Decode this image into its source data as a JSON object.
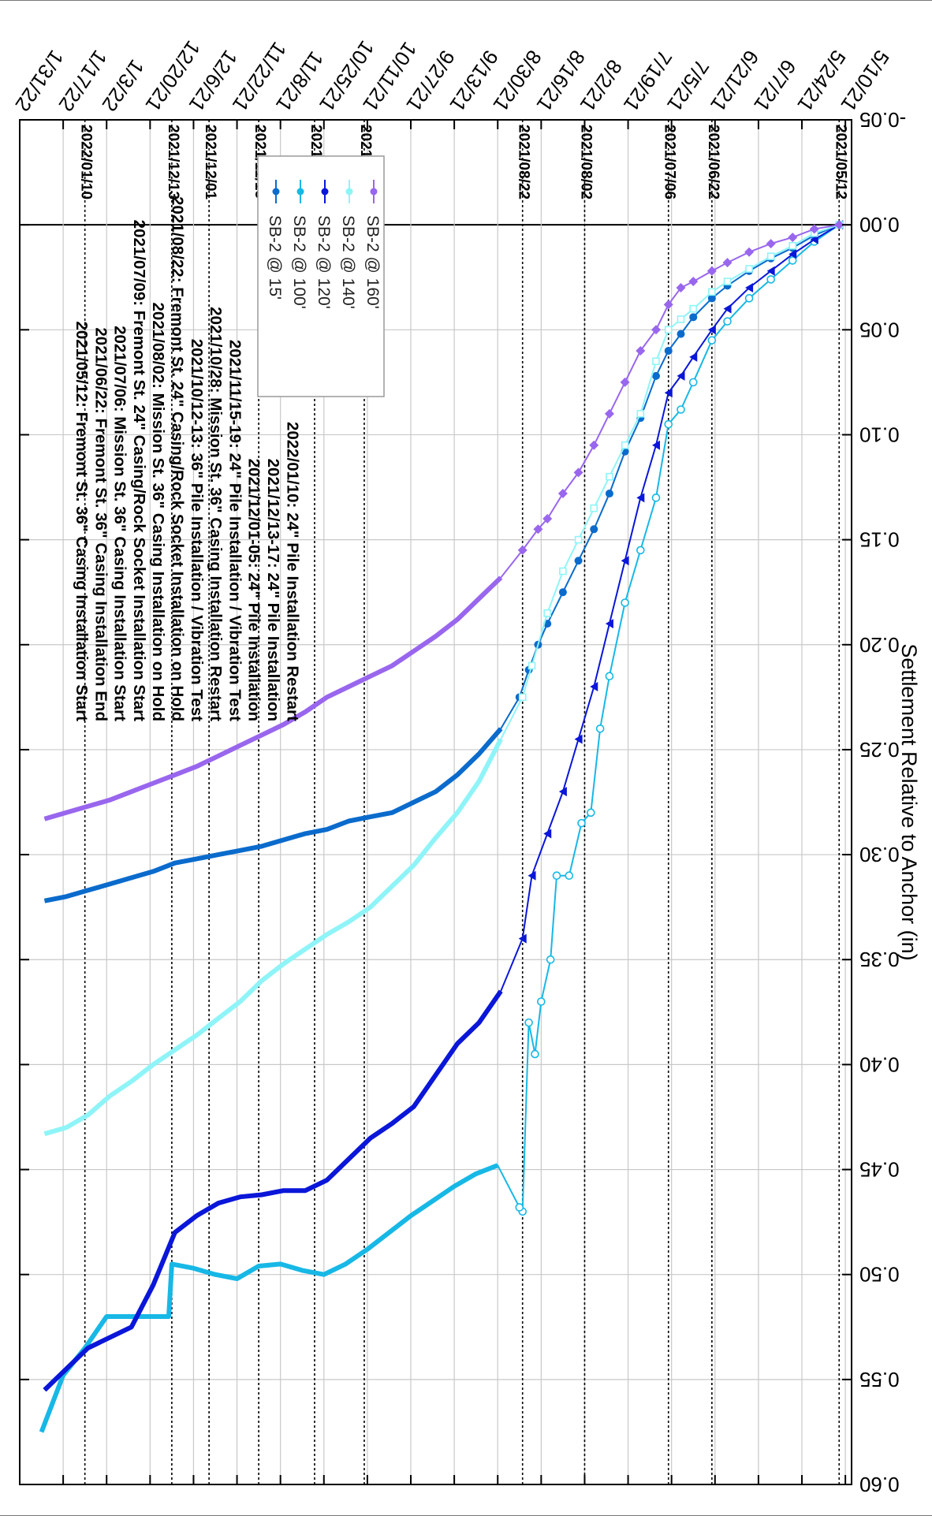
{
  "chart_data": {
    "type": "line",
    "ylabel": "Settlement Relative to Anchor (in)",
    "ylim": [
      -0.05,
      0.6
    ],
    "yticks": [
      "-0.05",
      "0.00",
      "0.05",
      "0.10",
      "0.15",
      "0.20",
      "0.25",
      "0.30",
      "0.35",
      "0.40",
      "0.45",
      "0.50",
      "0.55",
      "0.60"
    ],
    "xlim": [
      "2021-05-08",
      "2022-01-31"
    ],
    "xticks": [
      {
        "date": "2021-05-10",
        "label": "5/10/21"
      },
      {
        "date": "2021-05-24",
        "label": "5/24/21"
      },
      {
        "date": "2021-06-07",
        "label": "6/7/21"
      },
      {
        "date": "2021-06-21",
        "label": "6/21/21"
      },
      {
        "date": "2021-07-05",
        "label": "7/5/21"
      },
      {
        "date": "2021-07-19",
        "label": "7/19/21"
      },
      {
        "date": "2021-08-02",
        "label": "8/2/21"
      },
      {
        "date": "2021-08-16",
        "label": "8/16/21"
      },
      {
        "date": "2021-08-30",
        "label": "8/30/21"
      },
      {
        "date": "2021-09-13",
        "label": "9/13/21"
      },
      {
        "date": "2021-09-27",
        "label": "9/27/21"
      },
      {
        "date": "2021-10-11",
        "label": "10/11/21"
      },
      {
        "date": "2021-10-25",
        "label": "10/25/21"
      },
      {
        "date": "2021-11-08",
        "label": "11/8/21"
      },
      {
        "date": "2021-11-22",
        "label": "11/22/21"
      },
      {
        "date": "2021-12-06",
        "label": "12/6/21"
      },
      {
        "date": "2021-12-20",
        "label": "12/20/21"
      },
      {
        "date": "2022-01-03",
        "label": "1/3/22"
      },
      {
        "date": "2022-01-17",
        "label": "1/17/22"
      },
      {
        "date": "2022-01-31",
        "label": "1/31/22"
      }
    ],
    "event_lines": [
      {
        "date": "2021-05-12",
        "label": "2021/05/12"
      },
      {
        "date": "2021-06-22",
        "label": "2021/06/22"
      },
      {
        "date": "2021-07-06",
        "label": "2021/07/06"
      },
      {
        "date": "2021-08-02",
        "label": "2021/08/02"
      },
      {
        "date": "2021-08-22",
        "label": "2021/08/22"
      },
      {
        "date": "2021-10-12",
        "label": "2021/10/12"
      },
      {
        "date": "2021-10-28",
        "label": "2021/10/28"
      },
      {
        "date": "2021-11-15",
        "label": "2021/11/15"
      },
      {
        "date": "2021-12-01",
        "label": "2021/12/01"
      },
      {
        "date": "2021-12-13",
        "label": "2021/12/13"
      },
      {
        "date": "2022-01-10",
        "label": "2022/01/10"
      }
    ],
    "annotations": [
      "2021/05/12: Fremont St. 36\" Casing Installation Start",
      "2021/06/22: Fremont St. 36\" Casing Installation End",
      "2021/07/06: Mission St.  36\" Casing Installation Start",
      "2021/07/09: Fremont St. 24\" Casing/Rock Socket Installation Start",
      "2021/08/02: Mission St.  36\" Casing Installation on Hold",
      "2021/08/22: Fremont St. 24\" Casing/Rock Socket Installation on Hold",
      "2021/10/12-13: 36\" Pile Installation / Vibration Test",
      "2021/10/28: Mission St.  36\" Casing Installation Restart",
      "2021/11/15-19: 24\" Pile Installation / Vibration Test",
      "2021/12/01-05: 24\" Pile Installation",
      "2021/12/13-17: 24\" Pile Installation",
      "2022/01/10: 24\" Pile Installation Restart"
    ],
    "legend_position": "bottom-left",
    "grid": true,
    "series": [
      {
        "name": "SB-2 @ 15'",
        "color": "#0a6bcc",
        "marker": "dot",
        "points": [
          [
            "2021-05-12",
            0.0
          ],
          [
            "2021-05-20",
            0.005
          ],
          [
            "2021-05-27",
            0.011
          ],
          [
            "2021-06-03",
            0.016
          ],
          [
            "2021-06-10",
            0.022
          ],
          [
            "2021-06-17",
            0.029
          ],
          [
            "2021-06-22",
            0.035
          ],
          [
            "2021-06-28",
            0.044
          ],
          [
            "2021-07-02",
            0.052
          ],
          [
            "2021-07-06",
            0.06
          ],
          [
            "2021-07-10",
            0.072
          ],
          [
            "2021-07-15",
            0.092
          ],
          [
            "2021-07-20",
            0.108
          ],
          [
            "2021-07-25",
            0.128
          ],
          [
            "2021-07-30",
            0.145
          ],
          [
            "2021-08-04",
            0.16
          ],
          [
            "2021-08-09",
            0.175
          ],
          [
            "2021-08-14",
            0.19
          ],
          [
            "2021-08-17",
            0.2
          ],
          [
            "2021-08-20",
            0.212
          ],
          [
            "2021-08-23",
            0.225
          ],
          [
            "2021-08-29",
            0.24
          ],
          [
            "2021-09-05",
            0.252
          ],
          [
            "2021-09-12",
            0.262
          ],
          [
            "2021-09-19",
            0.27
          ],
          [
            "2021-09-26",
            0.275
          ],
          [
            "2021-10-03",
            0.28
          ],
          [
            "2021-10-10",
            0.282
          ],
          [
            "2021-10-17",
            0.284
          ],
          [
            "2021-10-24",
            0.288
          ],
          [
            "2021-10-31",
            0.29
          ],
          [
            "2021-11-07",
            0.293
          ],
          [
            "2021-11-14",
            0.296
          ],
          [
            "2021-11-21",
            0.298
          ],
          [
            "2021-11-28",
            0.3
          ],
          [
            "2021-12-05",
            0.302
          ],
          [
            "2021-12-12",
            0.304
          ],
          [
            "2021-12-19",
            0.308
          ],
          [
            "2021-12-26",
            0.311
          ],
          [
            "2022-01-02",
            0.314
          ],
          [
            "2022-01-09",
            0.317
          ],
          [
            "2022-01-16",
            0.32
          ],
          [
            "2022-01-23",
            0.322
          ]
        ]
      },
      {
        "name": "SB-2 @ 100'",
        "color": "#17b8e6",
        "marker": "circle",
        "points": [
          [
            "2021-05-12",
            0.0
          ],
          [
            "2021-05-20",
            0.008
          ],
          [
            "2021-05-27",
            0.017
          ],
          [
            "2021-06-03",
            0.026
          ],
          [
            "2021-06-10",
            0.035
          ],
          [
            "2021-06-17",
            0.046
          ],
          [
            "2021-06-22",
            0.055
          ],
          [
            "2021-06-28",
            0.075
          ],
          [
            "2021-07-02",
            0.088
          ],
          [
            "2021-07-06",
            0.095
          ],
          [
            "2021-07-10",
            0.13
          ],
          [
            "2021-07-15",
            0.155
          ],
          [
            "2021-07-20",
            0.18
          ],
          [
            "2021-07-25",
            0.215
          ],
          [
            "2021-07-28",
            0.24
          ],
          [
            "2021-07-31",
            0.28
          ],
          [
            "2021-08-03",
            0.285
          ],
          [
            "2021-08-07",
            0.31
          ],
          [
            "2021-08-11",
            0.31
          ],
          [
            "2021-08-13",
            0.35
          ],
          [
            "2021-08-16",
            0.37
          ],
          [
            "2021-08-18",
            0.395
          ],
          [
            "2021-08-20",
            0.38
          ],
          [
            "2021-08-22",
            0.47
          ],
          [
            "2021-08-23",
            0.468
          ],
          [
            "2021-08-30",
            0.448
          ],
          [
            "2021-09-06",
            0.452
          ],
          [
            "2021-09-13",
            0.458
          ],
          [
            "2021-09-20",
            0.465
          ],
          [
            "2021-09-27",
            0.472
          ],
          [
            "2021-10-04",
            0.48
          ],
          [
            "2021-10-11",
            0.488
          ],
          [
            "2021-10-18",
            0.495
          ],
          [
            "2021-10-25",
            0.5
          ],
          [
            "2021-11-01",
            0.498
          ],
          [
            "2021-11-08",
            0.495
          ],
          [
            "2021-11-15",
            0.496
          ],
          [
            "2021-11-22",
            0.502
          ],
          [
            "2021-11-29",
            0.5
          ],
          [
            "2021-12-06",
            0.497
          ],
          [
            "2021-12-13",
            0.495
          ],
          [
            "2021-12-14",
            0.52
          ],
          [
            "2021-12-27",
            0.52
          ],
          [
            "2022-01-03",
            0.52
          ],
          [
            "2022-01-10",
            0.535
          ],
          [
            "2022-01-17",
            0.548
          ],
          [
            "2022-01-24",
            0.575
          ]
        ]
      },
      {
        "name": "SB-2 @ 120'",
        "color": "#0a16d8",
        "marker": "tick",
        "points": [
          [
            "2021-05-12",
            0.0
          ],
          [
            "2021-05-20",
            0.007
          ],
          [
            "2021-05-27",
            0.014
          ],
          [
            "2021-06-03",
            0.022
          ],
          [
            "2021-06-10",
            0.03
          ],
          [
            "2021-06-17",
            0.04
          ],
          [
            "2021-06-22",
            0.05
          ],
          [
            "2021-06-28",
            0.063
          ],
          [
            "2021-07-02",
            0.072
          ],
          [
            "2021-07-06",
            0.08
          ],
          [
            "2021-07-10",
            0.105
          ],
          [
            "2021-07-15",
            0.13
          ],
          [
            "2021-07-20",
            0.16
          ],
          [
            "2021-07-25",
            0.19
          ],
          [
            "2021-07-30",
            0.22
          ],
          [
            "2021-08-04",
            0.245
          ],
          [
            "2021-08-09",
            0.27
          ],
          [
            "2021-08-14",
            0.29
          ],
          [
            "2021-08-19",
            0.31
          ],
          [
            "2021-08-22",
            0.34
          ],
          [
            "2021-08-29",
            0.365
          ],
          [
            "2021-09-05",
            0.38
          ],
          [
            "2021-09-12",
            0.39
          ],
          [
            "2021-09-19",
            0.405
          ],
          [
            "2021-09-26",
            0.42
          ],
          [
            "2021-10-03",
            0.428
          ],
          [
            "2021-10-10",
            0.435
          ],
          [
            "2021-10-17",
            0.445
          ],
          [
            "2021-10-24",
            0.455
          ],
          [
            "2021-10-31",
            0.46
          ],
          [
            "2021-11-07",
            0.46
          ],
          [
            "2021-11-14",
            0.462
          ],
          [
            "2021-11-21",
            0.463
          ],
          [
            "2021-11-28",
            0.466
          ],
          [
            "2021-12-05",
            0.472
          ],
          [
            "2021-12-12",
            0.48
          ],
          [
            "2021-12-19",
            0.505
          ],
          [
            "2021-12-26",
            0.525
          ],
          [
            "2022-01-02",
            0.53
          ],
          [
            "2022-01-09",
            0.535
          ],
          [
            "2022-01-16",
            0.545
          ],
          [
            "2022-01-23",
            0.555
          ]
        ]
      },
      {
        "name": "SB-2 @ 140'",
        "color": "#8ff4f8",
        "marker": "square",
        "points": [
          [
            "2021-05-12",
            0.0
          ],
          [
            "2021-05-20",
            0.004
          ],
          [
            "2021-05-27",
            0.01
          ],
          [
            "2021-06-03",
            0.015
          ],
          [
            "2021-06-10",
            0.021
          ],
          [
            "2021-06-17",
            0.027
          ],
          [
            "2021-06-22",
            0.032
          ],
          [
            "2021-06-28",
            0.04
          ],
          [
            "2021-07-02",
            0.045
          ],
          [
            "2021-07-06",
            0.05
          ],
          [
            "2021-07-10",
            0.065
          ],
          [
            "2021-07-15",
            0.09
          ],
          [
            "2021-07-20",
            0.105
          ],
          [
            "2021-07-25",
            0.12
          ],
          [
            "2021-07-30",
            0.135
          ],
          [
            "2021-08-04",
            0.15
          ],
          [
            "2021-08-09",
            0.165
          ],
          [
            "2021-08-14",
            0.185
          ],
          [
            "2021-08-19",
            0.21
          ],
          [
            "2021-08-22",
            0.225
          ],
          [
            "2021-08-29",
            0.245
          ],
          [
            "2021-09-05",
            0.265
          ],
          [
            "2021-09-12",
            0.28
          ],
          [
            "2021-09-19",
            0.292
          ],
          [
            "2021-09-26",
            0.305
          ],
          [
            "2021-10-03",
            0.315
          ],
          [
            "2021-10-10",
            0.325
          ],
          [
            "2021-10-17",
            0.332
          ],
          [
            "2021-10-24",
            0.338
          ],
          [
            "2021-10-31",
            0.345
          ],
          [
            "2021-11-07",
            0.352
          ],
          [
            "2021-11-14",
            0.36
          ],
          [
            "2021-11-21",
            0.37
          ],
          [
            "2021-11-28",
            0.378
          ],
          [
            "2021-12-05",
            0.386
          ],
          [
            "2021-12-12",
            0.393
          ],
          [
            "2021-12-19",
            0.4
          ],
          [
            "2021-12-26",
            0.408
          ],
          [
            "2022-01-02",
            0.415
          ],
          [
            "2022-01-09",
            0.424
          ],
          [
            "2022-01-16",
            0.43
          ],
          [
            "2022-01-23",
            0.433
          ]
        ]
      },
      {
        "name": "SB-2 @ 160'",
        "color": "#9966ee",
        "marker": "diamond",
        "points": [
          [
            "2021-05-12",
            0.0
          ],
          [
            "2021-05-20",
            0.002
          ],
          [
            "2021-05-27",
            0.006
          ],
          [
            "2021-06-03",
            0.009
          ],
          [
            "2021-06-10",
            0.013
          ],
          [
            "2021-06-17",
            0.018
          ],
          [
            "2021-06-22",
            0.022
          ],
          [
            "2021-06-28",
            0.027
          ],
          [
            "2021-07-02",
            0.03
          ],
          [
            "2021-07-06",
            0.038
          ],
          [
            "2021-07-10",
            0.05
          ],
          [
            "2021-07-15",
            0.06
          ],
          [
            "2021-07-20",
            0.075
          ],
          [
            "2021-07-25",
            0.09
          ],
          [
            "2021-07-30",
            0.105
          ],
          [
            "2021-08-04",
            0.118
          ],
          [
            "2021-08-09",
            0.128
          ],
          [
            "2021-08-14",
            0.14
          ],
          [
            "2021-08-17",
            0.145
          ],
          [
            "2021-08-22",
            0.155
          ],
          [
            "2021-08-29",
            0.168
          ],
          [
            "2021-09-05",
            0.178
          ],
          [
            "2021-09-12",
            0.188
          ],
          [
            "2021-09-19",
            0.196
          ],
          [
            "2021-09-26",
            0.203
          ],
          [
            "2021-10-03",
            0.21
          ],
          [
            "2021-10-10",
            0.215
          ],
          [
            "2021-10-17",
            0.22
          ],
          [
            "2021-10-24",
            0.225
          ],
          [
            "2021-10-31",
            0.232
          ],
          [
            "2021-11-07",
            0.238
          ],
          [
            "2021-11-14",
            0.243
          ],
          [
            "2021-11-21",
            0.248
          ],
          [
            "2021-11-28",
            0.253
          ],
          [
            "2021-12-05",
            0.258
          ],
          [
            "2021-12-12",
            0.262
          ],
          [
            "2021-12-19",
            0.266
          ],
          [
            "2021-12-26",
            0.27
          ],
          [
            "2022-01-02",
            0.274
          ],
          [
            "2022-01-09",
            0.277
          ],
          [
            "2022-01-16",
            0.28
          ],
          [
            "2022-01-23",
            0.283
          ]
        ]
      }
    ]
  }
}
